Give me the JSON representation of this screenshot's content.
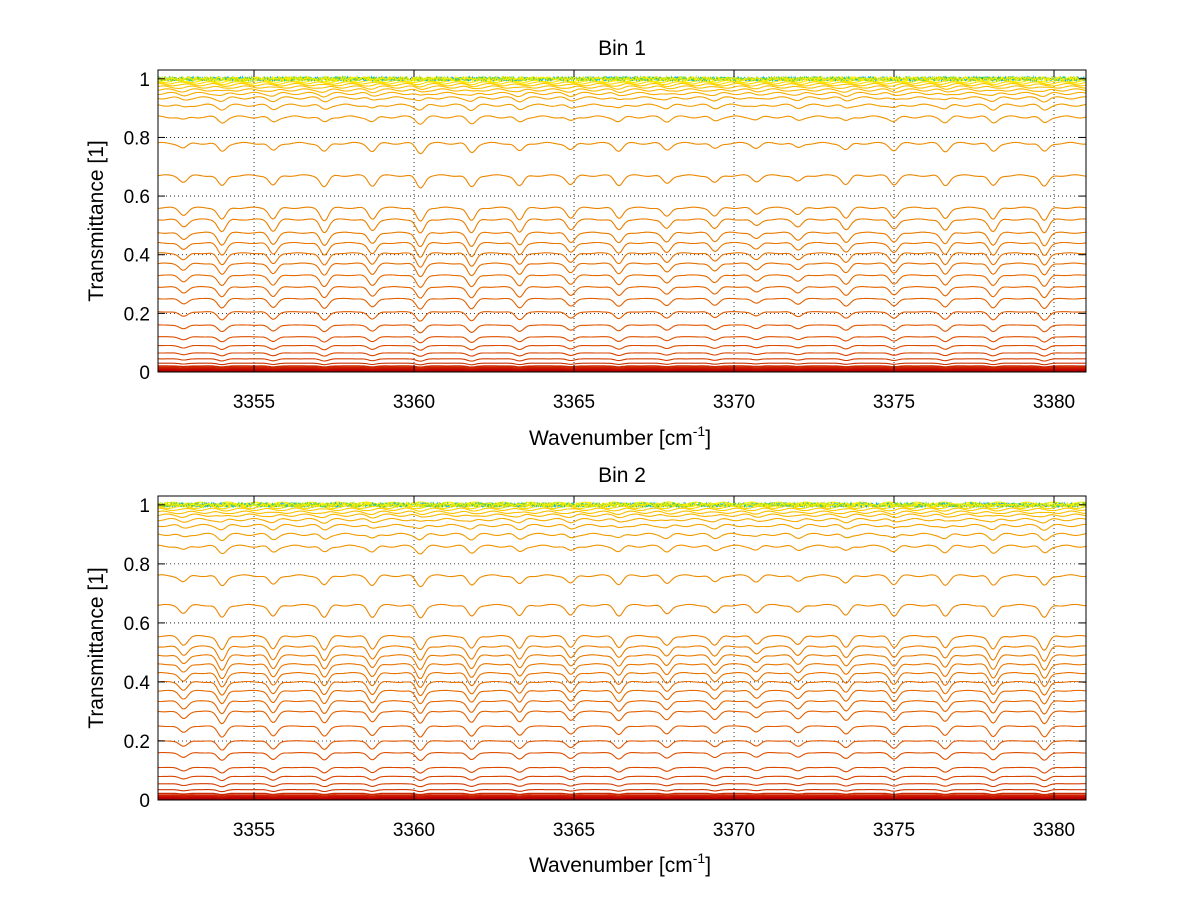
{
  "chart_data": [
    {
      "type": "line",
      "title": "Bin 1",
      "xlabel_main": "Wavenumber [cm",
      "xlabel_sup": "-1",
      "xlabel_tail": "]",
      "ylabel": "Transmittance [1]",
      "xlim": [
        3352,
        3381
      ],
      "ylim": [
        0,
        1.03
      ],
      "x_ticks": [
        "3355",
        "3360",
        "3365",
        "3370",
        "3375",
        "3380"
      ],
      "y_ticks": [
        "0",
        "0.2",
        "0.4",
        "0.6",
        "0.8",
        "1"
      ],
      "grid": true,
      "grid_style": "dotted",
      "line_centers": [
        3352.8,
        3354,
        3355.6,
        3357.2,
        3358.7,
        3360.2,
        3361.8,
        3363.3,
        3364.9,
        3366.4,
        3367.9,
        3369.4,
        3370.7,
        3372,
        3373.5,
        3375,
        3376.6,
        3378.1,
        3379.7
      ],
      "line_depths": [
        0.5,
        0.85,
        0.8,
        0.9,
        0.8,
        1.0,
        0.95,
        0.85,
        0.7,
        0.75,
        0.65,
        0.6,
        0.45,
        0.5,
        0.7,
        0.7,
        0.8,
        0.85,
        0.9
      ],
      "series_baselines": [
        0.003,
        0.006,
        0.009,
        0.012,
        0.015,
        0.02,
        0.03,
        0.045,
        0.065,
        0.09,
        0.12,
        0.16,
        0.205,
        0.25,
        0.29,
        0.33,
        0.37,
        0.405,
        0.44,
        0.475,
        0.52,
        0.56,
        0.67,
        0.78,
        0.87,
        0.91,
        0.935,
        0.95,
        0.962,
        0.972,
        0.98,
        0.986,
        0.991,
        0.995
      ],
      "series_colors": [
        "#9c0000",
        "#b30000",
        "#c00000",
        "#c91000",
        "#cc2000",
        "#cc2a00",
        "#cc3300",
        "#d43d00",
        "#d94400",
        "#dc4a00",
        "#de5000",
        "#e05600",
        "#e25c00",
        "#e36000",
        "#e46500",
        "#e56a00",
        "#e66e00",
        "#e77200",
        "#e87600",
        "#e87a00",
        "#ea7e00",
        "#eb8200",
        "#ec8600",
        "#ee8c00",
        "#ef9400",
        "#f09c00",
        "#f2a400",
        "#f4ad00",
        "#f6b600",
        "#f8c000",
        "#fbcb00",
        "#fdd800",
        "#ffe400",
        "#ffee00"
      ],
      "top_noise_colors": [
        "#00aaff",
        "#22cc88",
        "#aadd00",
        "#ffee00"
      ]
    },
    {
      "type": "line",
      "title": "Bin 2",
      "xlabel_main": "Wavenumber [cm",
      "xlabel_sup": "-1",
      "xlabel_tail": "]",
      "ylabel": "Transmittance [1]",
      "xlim": [
        3352,
        3381
      ],
      "ylim": [
        0,
        1.03
      ],
      "x_ticks": [
        "3355",
        "3360",
        "3365",
        "3370",
        "3375",
        "3380"
      ],
      "y_ticks": [
        "0",
        "0.2",
        "0.4",
        "0.6",
        "0.8",
        "1"
      ],
      "grid": true,
      "grid_style": "dotted",
      "line_centers": [
        3352.8,
        3354,
        3355.6,
        3357.2,
        3358.7,
        3360.2,
        3361.8,
        3363.3,
        3364.9,
        3366.4,
        3367.9,
        3369.4,
        3370.7,
        3372,
        3373.5,
        3375,
        3376.6,
        3378.1,
        3379.7
      ],
      "line_depths": [
        0.6,
        1.0,
        0.9,
        0.95,
        0.9,
        1.0,
        0.9,
        0.85,
        0.75,
        0.8,
        0.7,
        0.65,
        0.55,
        0.6,
        0.75,
        0.8,
        0.85,
        0.95,
        1.0
      ],
      "series_baselines": [
        0.003,
        0.006,
        0.009,
        0.012,
        0.016,
        0.022,
        0.035,
        0.055,
        0.08,
        0.11,
        0.16,
        0.2,
        0.25,
        0.3,
        0.335,
        0.37,
        0.4,
        0.43,
        0.46,
        0.49,
        0.52,
        0.555,
        0.66,
        0.76,
        0.86,
        0.9,
        0.93,
        0.95,
        0.965,
        0.975,
        0.985,
        0.992,
        0.998,
        1.005
      ],
      "series_colors": [
        "#9c0000",
        "#b30000",
        "#c00000",
        "#c91000",
        "#cc2000",
        "#cc2a00",
        "#cc3300",
        "#d43d00",
        "#d94400",
        "#dc4a00",
        "#de5000",
        "#e05600",
        "#e25c00",
        "#e36000",
        "#e46500",
        "#e56a00",
        "#e66e00",
        "#e77200",
        "#e87600",
        "#e87a00",
        "#ea7e00",
        "#eb8200",
        "#ec8600",
        "#ee8c00",
        "#ef9400",
        "#f09c00",
        "#f2a400",
        "#f4ad00",
        "#f6b600",
        "#f8c000",
        "#fbcb00",
        "#fdd800",
        "#ffe400",
        "#ffee00"
      ],
      "top_noise_colors": [
        "#00aaff",
        "#22cc88",
        "#aadd00",
        "#ffee00"
      ]
    }
  ]
}
